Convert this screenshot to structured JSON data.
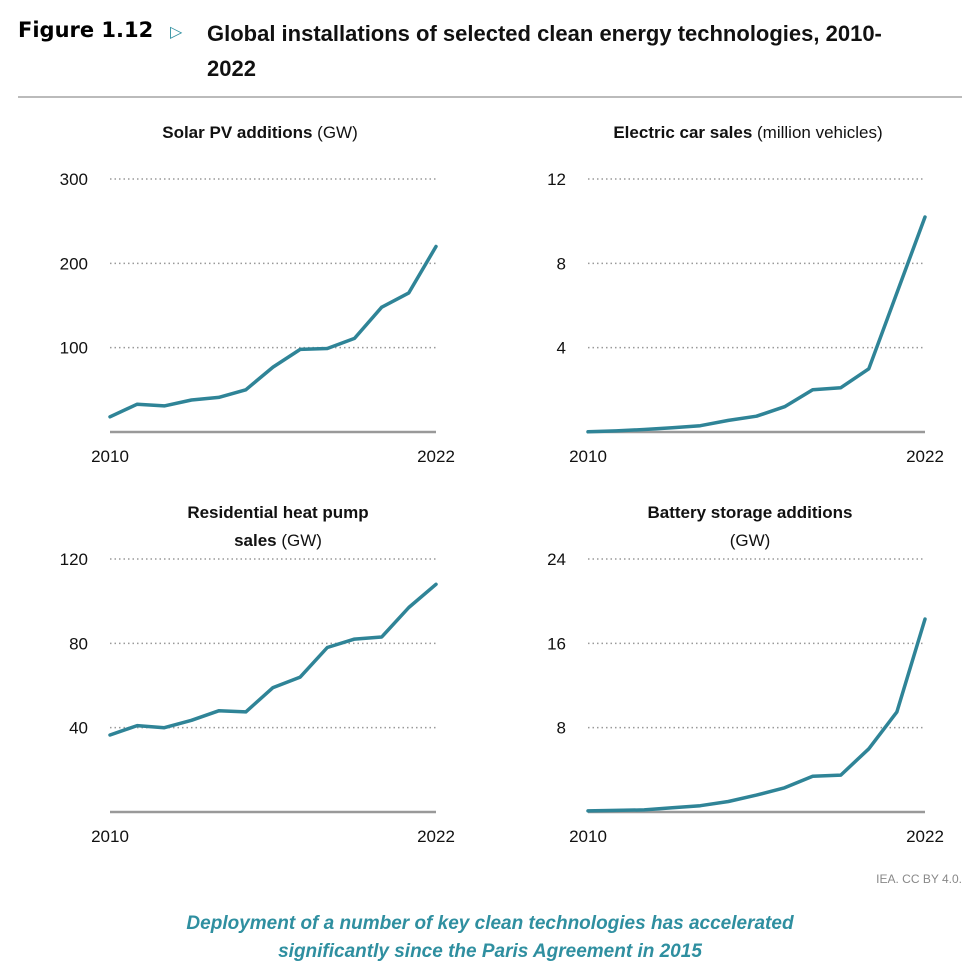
{
  "figure_label": "Figure 1.12",
  "figure_marker_icon": "triangle-right-icon",
  "title": "Global installations of selected clean energy technologies, 2010-2022",
  "credit": "IEA. CC BY 4.0.",
  "caption": "Deployment of a number of key clean technologies has accelerated significantly since the Paris Agreement in 2015",
  "line_color": "#2f8497",
  "chart_data": [
    {
      "type": "line",
      "title_bold": "Solar PV additions",
      "title_unit": "(GW)",
      "x": [
        2010,
        2011,
        2012,
        2013,
        2014,
        2015,
        2016,
        2017,
        2018,
        2019,
        2020,
        2021,
        2022
      ],
      "values": [
        18,
        33,
        31,
        38,
        41,
        50,
        77,
        98,
        99,
        111,
        148,
        165,
        220
      ],
      "ylim": [
        0,
        300
      ],
      "yticks": [
        100,
        200,
        300
      ],
      "xticks": [
        "2010",
        "2022"
      ],
      "grid": "dotted horizontal"
    },
    {
      "type": "line",
      "title_bold": "Electric car sales",
      "title_unit": "(million vehicles)",
      "x": [
        2010,
        2011,
        2012,
        2013,
        2014,
        2015,
        2016,
        2017,
        2018,
        2019,
        2020,
        2021,
        2022
      ],
      "values": [
        0.01,
        0.05,
        0.12,
        0.2,
        0.3,
        0.55,
        0.75,
        1.2,
        2.0,
        2.1,
        3.0,
        6.6,
        10.2
      ],
      "ylim": [
        0,
        12
      ],
      "yticks": [
        4,
        8,
        12
      ],
      "xticks": [
        "2010",
        "2022"
      ],
      "grid": "dotted horizontal"
    },
    {
      "type": "line",
      "title_bold": "Residential heat pump",
      "title_bold2": "sales",
      "title_unit": "(GW)",
      "x": [
        2010,
        2011,
        2012,
        2013,
        2014,
        2015,
        2016,
        2017,
        2018,
        2019,
        2020,
        2021,
        2022
      ],
      "values": [
        36.5,
        41,
        40,
        43.5,
        48,
        47.5,
        59,
        64,
        78,
        82,
        83,
        97,
        108
      ],
      "ylim": [
        0,
        120
      ],
      "yticks": [
        40,
        80,
        120
      ],
      "xticks": [
        "2010",
        "2022"
      ],
      "grid": "dotted horizontal"
    },
    {
      "type": "line",
      "title_bold": "Battery storage additions",
      "title_unit": "(GW)",
      "x": [
        2010,
        2011,
        2012,
        2013,
        2014,
        2015,
        2016,
        2017,
        2018,
        2019,
        2020,
        2021,
        2022
      ],
      "values": [
        0.1,
        0.15,
        0.2,
        0.4,
        0.6,
        1.0,
        1.6,
        2.3,
        3.4,
        3.5,
        6.0,
        9.5,
        18.3
      ],
      "ylim": [
        0,
        24
      ],
      "yticks": [
        8,
        16,
        24
      ],
      "xticks": [
        "2010",
        "2022"
      ],
      "grid": "dotted horizontal"
    }
  ]
}
